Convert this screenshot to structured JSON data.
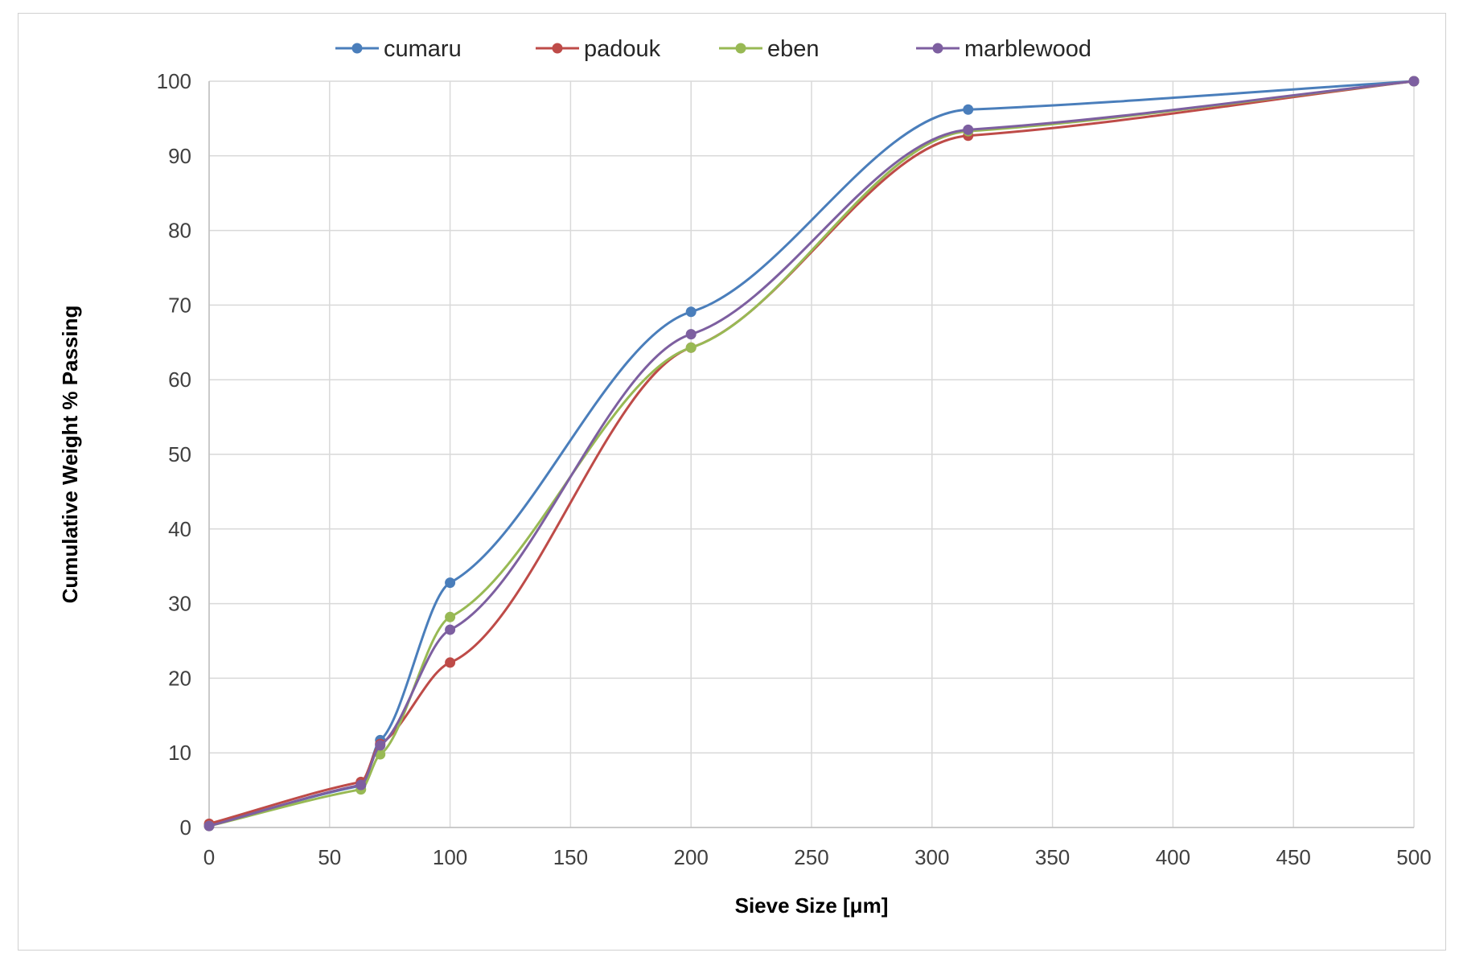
{
  "chart_data": {
    "type": "line",
    "xlabel": "Sieve Size [μm]",
    "ylabel": "Cumulative Weight % Passing",
    "xlim": [
      0,
      500
    ],
    "ylim": [
      0,
      100
    ],
    "xticks": [
      0,
      50,
      100,
      150,
      200,
      250,
      300,
      350,
      400,
      450,
      500
    ],
    "yticks": [
      0,
      10,
      20,
      30,
      40,
      50,
      60,
      70,
      80,
      90,
      100
    ],
    "grid": true,
    "smooth": true,
    "legend_position": "top",
    "series": [
      {
        "name": "cumaru",
        "color": "#4a7ebb",
        "x": [
          0,
          63,
          71,
          100,
          200,
          315,
          500
        ],
        "y": [
          0.3,
          5.6,
          11.7,
          32.8,
          69.1,
          96.2,
          100
        ]
      },
      {
        "name": "padouk",
        "color": "#be4b48",
        "x": [
          0,
          63,
          71,
          100,
          200,
          315,
          500
        ],
        "y": [
          0.5,
          6.1,
          11.2,
          22.1,
          64.3,
          92.7,
          100
        ]
      },
      {
        "name": "eben",
        "color": "#98b954",
        "x": [
          0,
          63,
          71,
          100,
          200,
          315,
          500
        ],
        "y": [
          0.2,
          5.1,
          9.8,
          28.2,
          64.3,
          93.3,
          100
        ]
      },
      {
        "name": "marblewood",
        "color": "#7d5fa0",
        "x": [
          0,
          63,
          71,
          100,
          200,
          315,
          500
        ],
        "y": [
          0.2,
          5.7,
          11.0,
          26.5,
          66.1,
          93.5,
          100
        ]
      }
    ]
  }
}
